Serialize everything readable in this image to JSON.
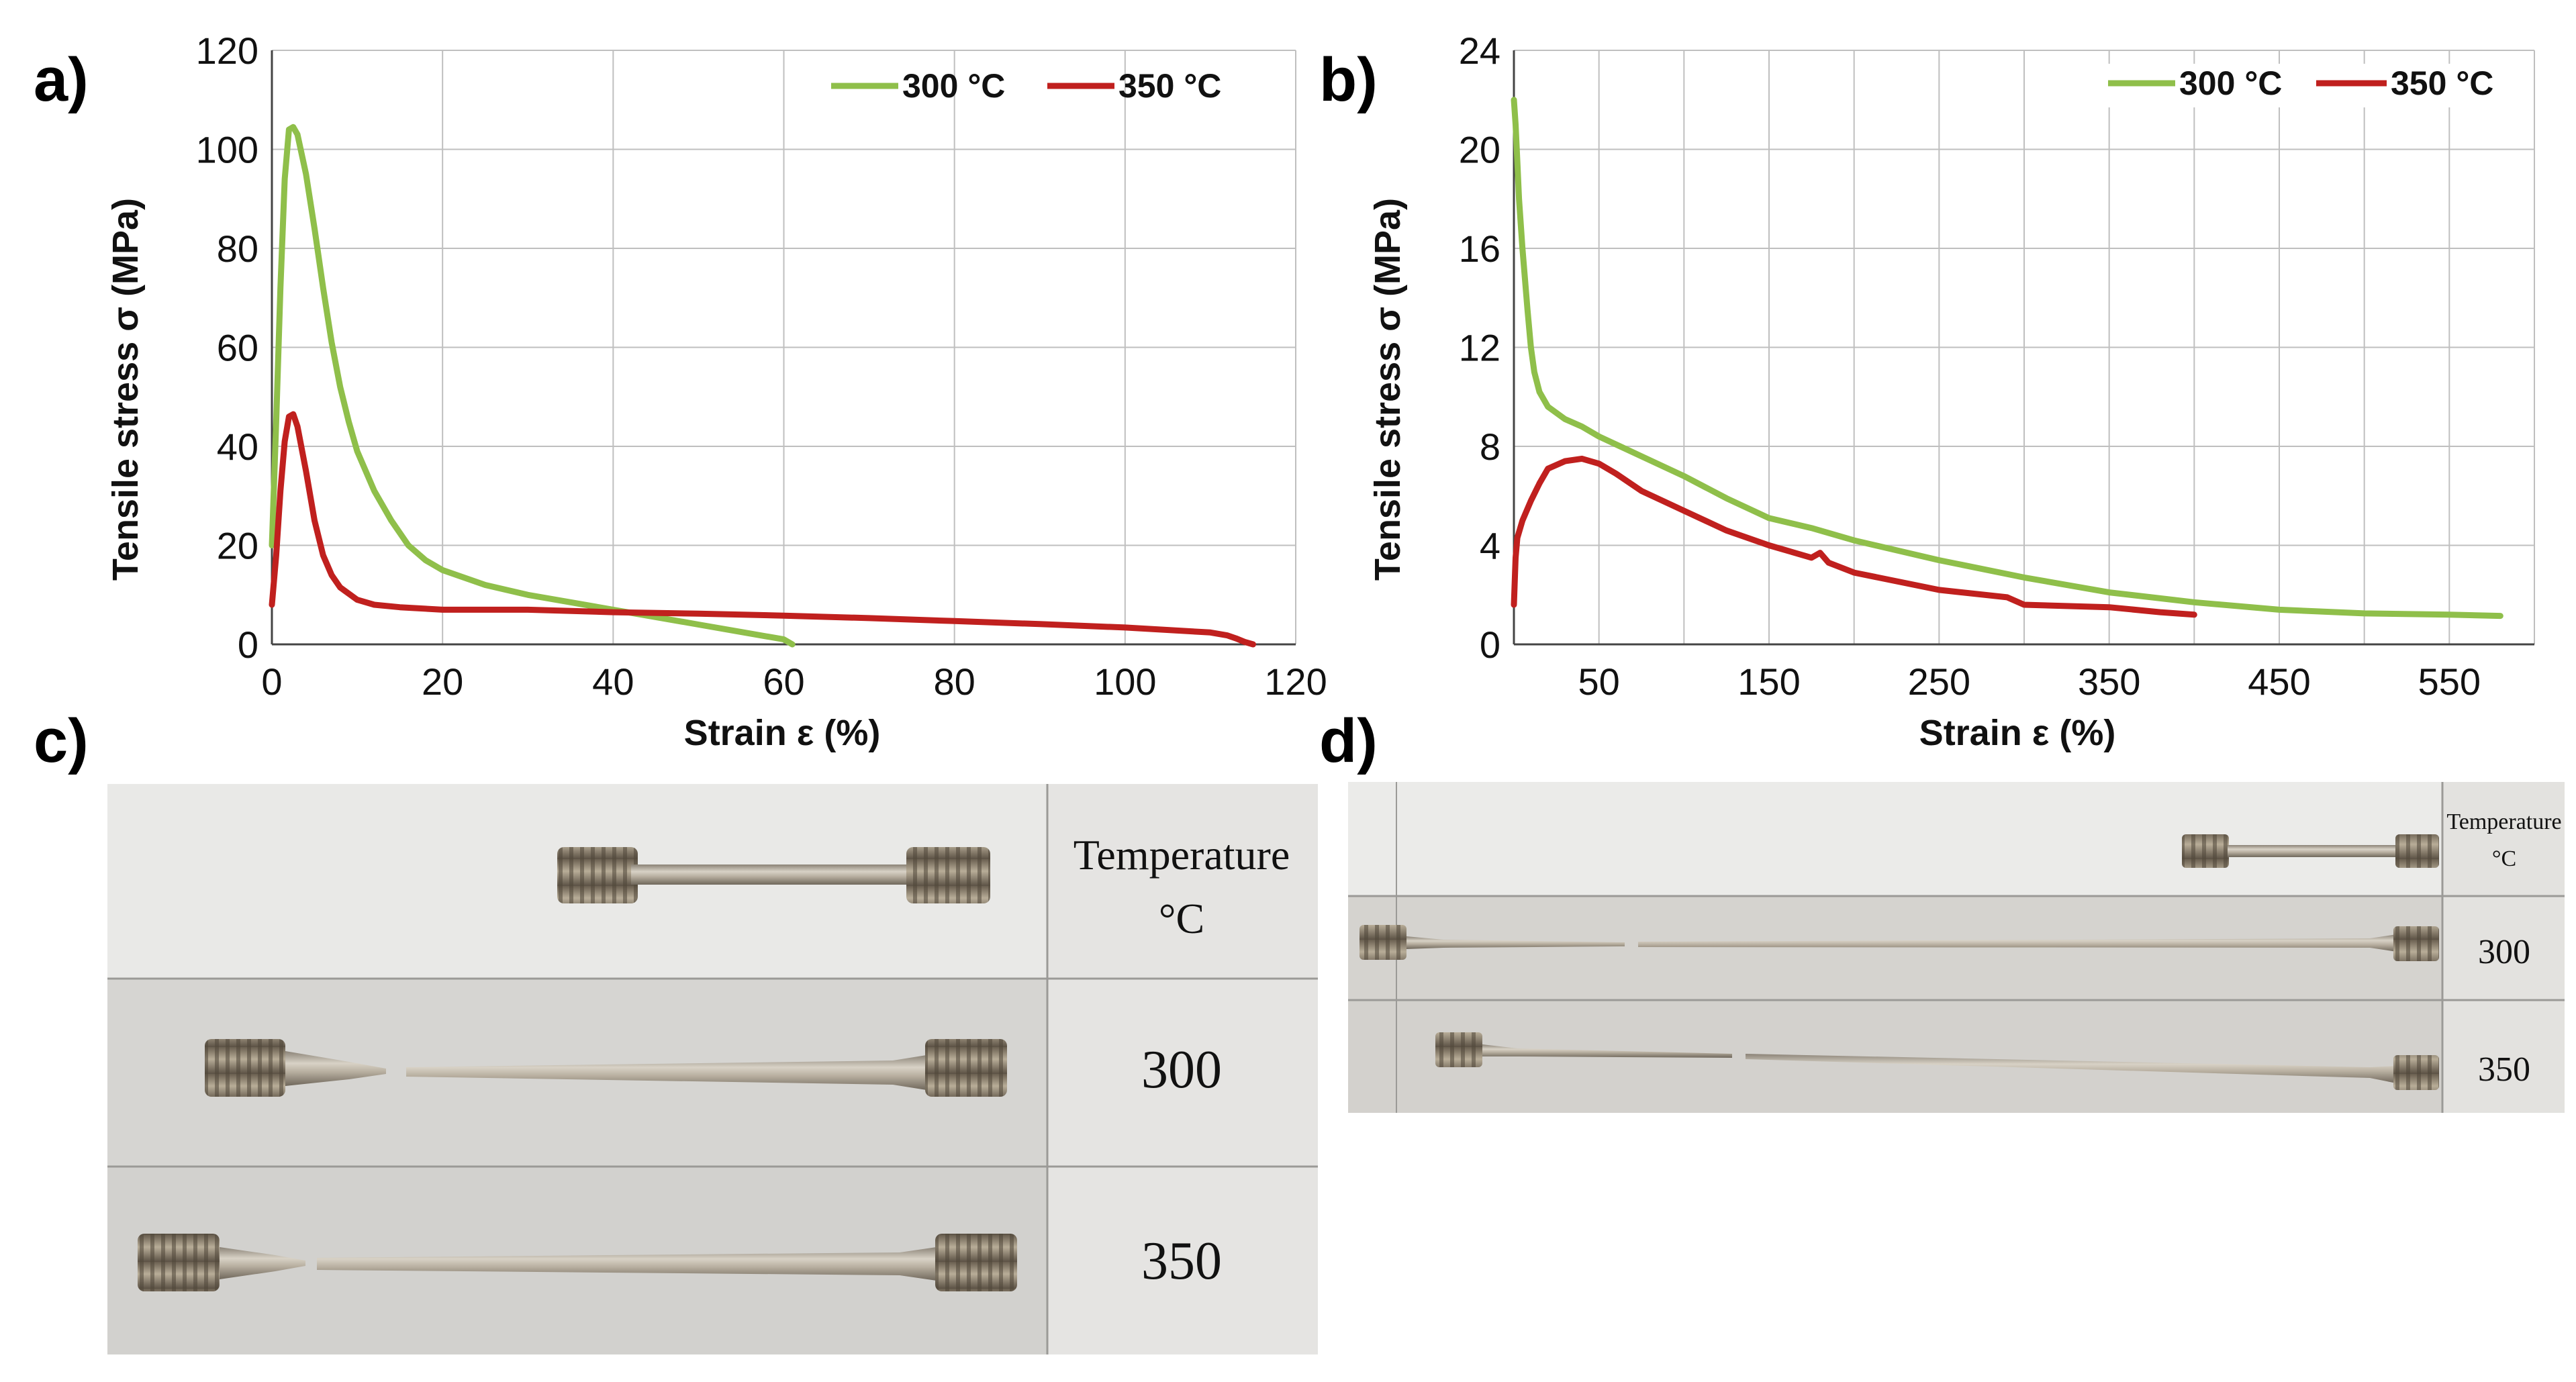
{
  "panels": {
    "a": {
      "letter": "a)"
    },
    "b": {
      "letter": "b)"
    },
    "c": {
      "letter": "c)"
    },
    "d": {
      "letter": "d)"
    }
  },
  "chart_data": [
    {
      "panel": "a)",
      "type": "line",
      "xlabel": "Strain ε (%)",
      "ylabel": "Tensile stress σ (MPa)",
      "xlim": [
        0,
        120
      ],
      "ylim": [
        0,
        120
      ],
      "xticks": [
        0,
        20,
        40,
        60,
        80,
        100,
        120
      ],
      "yticks": [
        0,
        20,
        40,
        60,
        80,
        100,
        120
      ],
      "grid": true,
      "legend_position": "top-right",
      "series": [
        {
          "name": "300 °C",
          "color": "#8fbf4a",
          "points": [
            [
              0,
              20
            ],
            [
              0.5,
              45
            ],
            [
              1,
              72
            ],
            [
              1.5,
              94
            ],
            [
              2,
              104
            ],
            [
              2.5,
              104.5
            ],
            [
              3,
              103
            ],
            [
              4,
              95
            ],
            [
              5,
              84
            ],
            [
              6,
              72
            ],
            [
              7,
              61
            ],
            [
              8,
              52
            ],
            [
              9,
              45
            ],
            [
              10,
              39
            ],
            [
              12,
              31
            ],
            [
              14,
              25
            ],
            [
              16,
              20
            ],
            [
              18,
              17
            ],
            [
              20,
              15
            ],
            [
              25,
              12
            ],
            [
              30,
              10
            ],
            [
              35,
              8.5
            ],
            [
              40,
              7
            ],
            [
              45,
              5.5
            ],
            [
              50,
              4
            ],
            [
              55,
              2.5
            ],
            [
              60,
              1
            ],
            [
              61,
              0
            ]
          ]
        },
        {
          "name": "350 °C",
          "color": "#c0201e",
          "points": [
            [
              0,
              8
            ],
            [
              0.5,
              18
            ],
            [
              1,
              31
            ],
            [
              1.5,
              41
            ],
            [
              2,
              46
            ],
            [
              2.5,
              46.5
            ],
            [
              3,
              44
            ],
            [
              4,
              35
            ],
            [
              5,
              25
            ],
            [
              6,
              18
            ],
            [
              7,
              14
            ],
            [
              8,
              11.5
            ],
            [
              10,
              9
            ],
            [
              12,
              8
            ],
            [
              15,
              7.5
            ],
            [
              20,
              7
            ],
            [
              30,
              7
            ],
            [
              40,
              6.5
            ],
            [
              50,
              6.2
            ],
            [
              60,
              5.8
            ],
            [
              70,
              5.3
            ],
            [
              80,
              4.7
            ],
            [
              90,
              4.1
            ],
            [
              100,
              3.4
            ],
            [
              110,
              2.4
            ],
            [
              112,
              1.8
            ],
            [
              113,
              1.2
            ],
            [
              114,
              0.5
            ],
            [
              115,
              0
            ]
          ]
        }
      ]
    },
    {
      "panel": "b)",
      "type": "line",
      "xlabel": "Strain ε (%)",
      "ylabel": "Tensile stress σ (MPa)",
      "xlim": [
        0,
        600
      ],
      "ylim": [
        0,
        24
      ],
      "xticks": [
        50,
        150,
        250,
        350,
        450,
        550
      ],
      "yticks": [
        0,
        4,
        8,
        12,
        16,
        20,
        24
      ],
      "grid": true,
      "legend_position": "top-right",
      "series": [
        {
          "name": "300 °C",
          "color": "#8fbf4a",
          "points": [
            [
              0,
              22
            ],
            [
              1,
              21
            ],
            [
              2,
              19.5
            ],
            [
              3,
              18
            ],
            [
              5,
              16
            ],
            [
              8,
              13.5
            ],
            [
              10,
              12
            ],
            [
              12,
              11
            ],
            [
              15,
              10.2
            ],
            [
              20,
              9.6
            ],
            [
              30,
              9.1
            ],
            [
              40,
              8.8
            ],
            [
              50,
              8.4
            ],
            [
              75,
              7.6
            ],
            [
              100,
              6.8
            ],
            [
              125,
              5.9
            ],
            [
              150,
              5.1
            ],
            [
              175,
              4.7
            ],
            [
              200,
              4.2
            ],
            [
              250,
              3.4
            ],
            [
              300,
              2.7
            ],
            [
              350,
              2.1
            ],
            [
              400,
              1.7
            ],
            [
              450,
              1.4
            ],
            [
              500,
              1.25
            ],
            [
              550,
              1.2
            ],
            [
              580,
              1.15
            ]
          ]
        },
        {
          "name": "350 °C",
          "color": "#c0201e",
          "points": [
            [
              0,
              1.6
            ],
            [
              1,
              3.5
            ],
            [
              2,
              4.3
            ],
            [
              5,
              5
            ],
            [
              10,
              5.8
            ],
            [
              15,
              6.5
            ],
            [
              20,
              7.1
            ],
            [
              30,
              7.4
            ],
            [
              40,
              7.5
            ],
            [
              50,
              7.3
            ],
            [
              60,
              6.9
            ],
            [
              75,
              6.2
            ],
            [
              100,
              5.4
            ],
            [
              125,
              4.6
            ],
            [
              150,
              4.0
            ],
            [
              175,
              3.5
            ],
            [
              180,
              3.7
            ],
            [
              185,
              3.3
            ],
            [
              200,
              2.9
            ],
            [
              250,
              2.2
            ],
            [
              290,
              1.9
            ],
            [
              300,
              1.6
            ],
            [
              350,
              1.5
            ],
            [
              380,
              1.3
            ],
            [
              400,
              1.2
            ]
          ]
        }
      ]
    }
  ],
  "photo_c": {
    "header_line1": "Temperature",
    "header_line2": "°C",
    "row1_label": "300",
    "row2_label": "350"
  },
  "photo_d": {
    "header_line1": "Temperature",
    "header_line2": "°C",
    "row1_label": "300",
    "row2_label": "350"
  }
}
